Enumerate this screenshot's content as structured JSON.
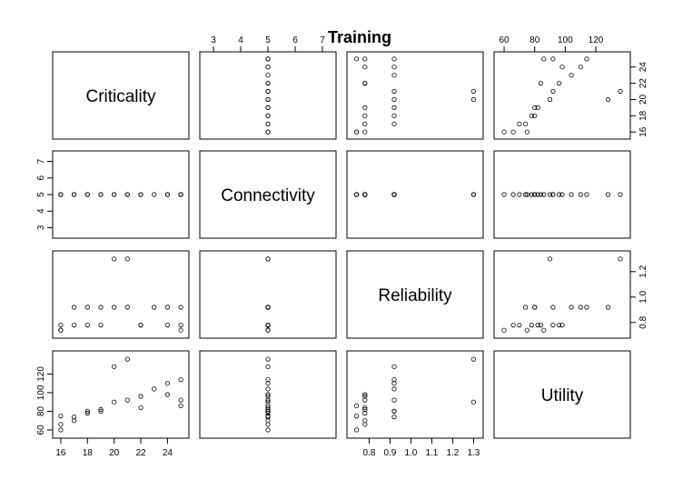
{
  "chart_data": {
    "type": "scatter-matrix",
    "title": "Training",
    "variables": [
      "Criticality",
      "Connectivity",
      "Reliability",
      "Utility"
    ],
    "columns": {
      "Criticality": [
        16,
        16,
        17,
        17,
        18,
        18,
        19,
        20,
        20,
        21,
        21,
        22,
        23,
        24,
        25,
        25,
        25,
        16,
        19,
        22,
        24
      ],
      "Connectivity": [
        5,
        5,
        5,
        5,
        5,
        5,
        5,
        5,
        5,
        5,
        5,
        5,
        5,
        5,
        5,
        5,
        5,
        5,
        5,
        5,
        5
      ],
      "Reliability": [
        0.74,
        0.78,
        0.78,
        0.92,
        0.78,
        0.92,
        0.78,
        1.3,
        0.92,
        1.3,
        0.92,
        0.78,
        0.92,
        0.92,
        0.74,
        0.78,
        0.92,
        0.74,
        0.92,
        0.78,
        0.78
      ],
      "Utility": [
        60,
        66,
        70,
        74,
        78,
        80,
        82,
        90,
        128,
        136,
        92,
        84,
        104,
        110,
        86,
        92,
        114,
        75,
        80,
        96,
        98
      ]
    },
    "ticks": {
      "Criticality": [
        "16",
        "18",
        "20",
        "22",
        "24"
      ],
      "Connectivity": [
        "3",
        "4",
        "5",
        "6",
        "7"
      ],
      "Reliability": [
        "0.8",
        "0.9",
        "1.0",
        "1.1",
        "1.2",
        "1.3"
      ],
      "Utility": [
        "60",
        "80",
        "100",
        "120"
      ]
    },
    "right_axis_ticks": {
      "Criticality": [
        "16",
        "18",
        "20",
        "22",
        "24"
      ],
      "Reliability": [
        "0.8",
        "1.0",
        "1.2"
      ]
    },
    "left_axis_ticks": {
      "Connectivity": [
        "3",
        "4",
        "5",
        "6",
        "7"
      ],
      "Utility": [
        "60",
        "80",
        "100",
        "120"
      ]
    },
    "ranges": {
      "Criticality": [
        15.8,
        25.2
      ],
      "Connectivity": [
        2.7,
        7.3
      ],
      "Reliability": [
        0.72,
        1.32
      ],
      "Utility": [
        57,
        139
      ]
    },
    "marker": "open-circle",
    "grid": false
  }
}
